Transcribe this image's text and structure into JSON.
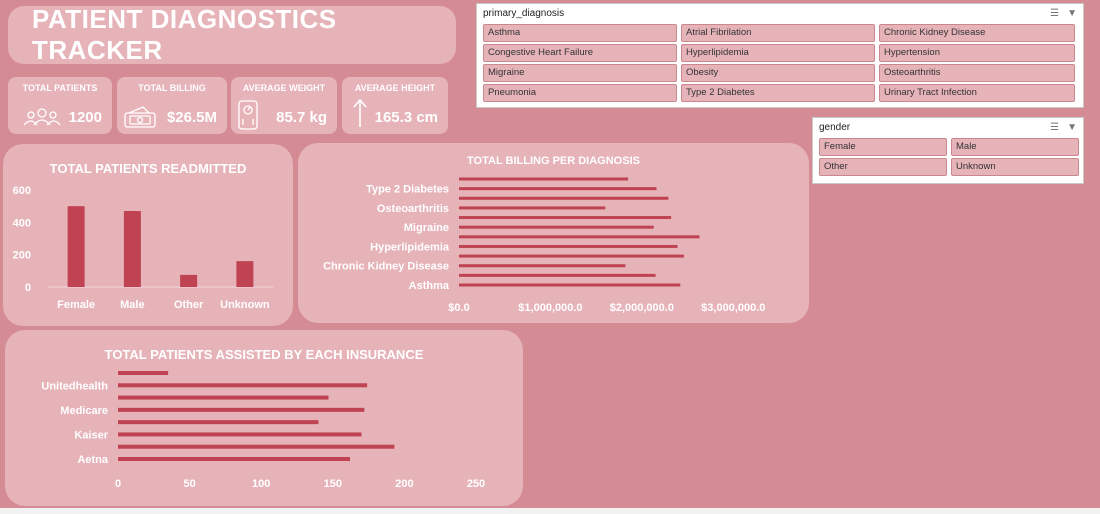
{
  "title": "PATIENT DIAGNOSTICS TRACKER",
  "kpis": [
    {
      "label": "TOTAL PATIENTS",
      "value": "1200",
      "icon": "people-icon"
    },
    {
      "label": "TOTAL BILLING",
      "value": "$26.5M",
      "icon": "money-icon"
    },
    {
      "label": "AVERAGE WEIGHT",
      "value": "85.7 kg",
      "icon": "scale-icon"
    },
    {
      "label": "AVERAGE HEIGHT",
      "value": "165.3 cm",
      "icon": "up-arrow-icon"
    }
  ],
  "slicers": {
    "diagnosis": {
      "header": "primary_diagnosis",
      "items": [
        "Asthma",
        "Atrial Fibrilation",
        "Chronic Kidney Disease",
        "Congestive Heart Failure",
        "Hyperlipidemia",
        "Hypertension",
        "Migraine",
        "Obesity",
        "Osteoarthritis",
        "Pneumonia",
        "Type 2 Diabetes",
        "Urinary Tract Infection"
      ]
    },
    "gender": {
      "header": "gender",
      "items": [
        "Female",
        "Male",
        "Other",
        "Unknown"
      ]
    }
  },
  "colors": {
    "bar": "#bf4352",
    "panel": "#e6b3b9",
    "background": "#d48b94"
  },
  "chart_data": [
    {
      "type": "bar",
      "title": "TOTAL PATIENTS READMITTED",
      "categories": [
        "Female",
        "Male",
        "Other",
        "Unknown"
      ],
      "values": [
        500,
        470,
        75,
        160
      ],
      "ylim": [
        0,
        600
      ],
      "yticks": [
        "0",
        "200",
        "400",
        "600"
      ],
      "grid": false
    },
    {
      "type": "bar",
      "orientation": "horizontal",
      "title": "TOTAL BILLING PER DIAGNOSIS",
      "categories": [
        "Asthma",
        "Atrial Fibrilation",
        "Chronic Kidney Disease",
        "Congestive Heart Failure",
        "Hyperlipidemia",
        "Hypertension",
        "Migraine",
        "Obesity",
        "Osteoarthritis",
        "Pneumonia",
        "Type 2 Diabetes",
        "Urinary Tract Infection"
      ],
      "labels": [
        "Asthma",
        "Chronic Kidney Disease",
        "Hyperlipidemia",
        "Migraine",
        "Osteoarthritis",
        "Type 2 Diabetes"
      ],
      "values": [
        2420000,
        2150000,
        1820000,
        2460000,
        2390000,
        2630000,
        2130000,
        2320000,
        1600000,
        2290000,
        2160000,
        1850000
      ],
      "xlim": [
        0,
        3500000
      ],
      "xticks": [
        "$0.0",
        "$1,000,000.0",
        "$2,000,000.0",
        "$3,000,000.0"
      ]
    },
    {
      "type": "bar",
      "orientation": "horizontal",
      "title": "TOTAL PATIENTS ASSISTED BY EACH INSURANCE",
      "categories": [
        "Aetna",
        "",
        "Kaiser",
        "",
        "Medicare",
        "",
        "Unitedhealth",
        ""
      ],
      "labels": [
        "Aetna",
        "Kaiser",
        "Medicare",
        "Unitedhealth"
      ],
      "values": [
        162,
        193,
        170,
        140,
        172,
        147,
        174,
        35
      ],
      "xlim": [
        0,
        250
      ],
      "xticks": [
        "0",
        "50",
        "100",
        "150",
        "200",
        "250"
      ]
    }
  ]
}
